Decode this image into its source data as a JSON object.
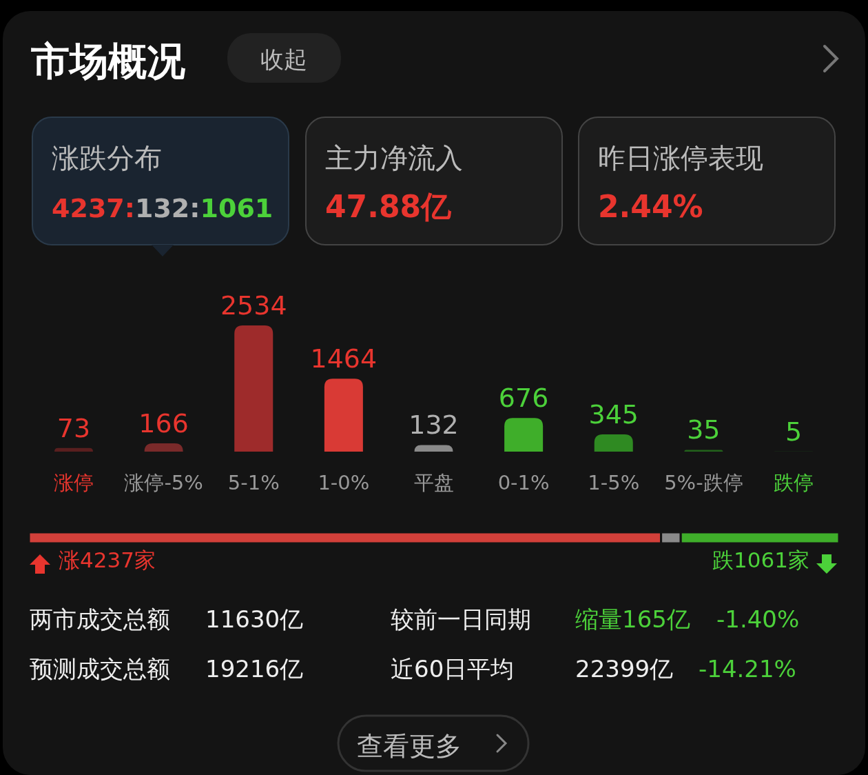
{
  "chart_data": [
    {
      "type": "other",
      "title": "市场概况",
      "annotations": [
        "收起",
        "涨跌分布",
        "4237:132:1061",
        "主力净流入",
        "47.88亿",
        "昨日涨停表现",
        "2.44%"
      ]
    },
    {
      "type": "bar",
      "categories": [
        "涨停",
        "涨停-5%",
        "5-1%",
        "1-0%",
        "平盘",
        "0-1%",
        "1-5%",
        "5%-跌停",
        "跌停"
      ],
      "values": [
        73,
        166,
        2534,
        1464,
        132,
        676,
        345,
        35,
        5
      ],
      "colors": [
        "#5a1f1f",
        "#7a2a2a",
        "#9e2b2b",
        "#d93a35",
        "#8a8a8a",
        "#3fae2a",
        "#2f8a22",
        "#23631b",
        "#1e4a1a"
      ],
      "data_labels": true
    },
    {
      "type": "bar",
      "orientation": "horizontal",
      "stacked": true,
      "categories": [
        null
      ],
      "series": [
        {
          "color": "#d2403a",
          "values": [
            4237
          ],
          "value_labels": [
            "涨4237家"
          ]
        },
        {
          "color": "#8a8a8a",
          "values": [
            132
          ],
          "value_labels": [
            null
          ]
        },
        {
          "color": "#3fae2a",
          "values": [
            1061
          ],
          "value_labels": [
            "跌1061家"
          ]
        }
      ],
      "annotations": [
        "两市成交总额",
        "11630亿",
        "较前一日同期",
        "缩量165亿",
        "-1.40%",
        "预测成交总额",
        "19216亿",
        "近60日平均",
        "22399亿",
        "-14.21%",
        "查看更多"
      ]
    }
  ]
}
